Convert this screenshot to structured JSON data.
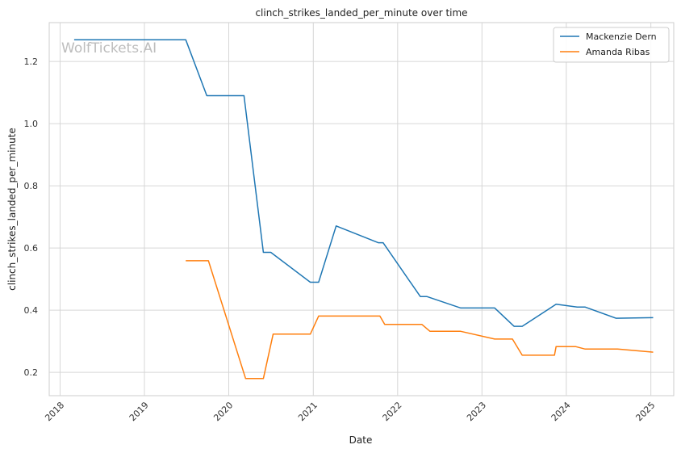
{
  "watermark": "WolfTickets.AI",
  "chart_data": {
    "type": "line",
    "title": "clinch_strikes_landed_per_minute over time",
    "xlabel": "Date",
    "ylabel": "clinch_strikes_landed_per_minute",
    "x_ticks": [
      "2018",
      "2019",
      "2020",
      "2021",
      "2022",
      "2023",
      "2024",
      "2025"
    ],
    "y_ticks": [
      "0.2",
      "0.4",
      "0.6",
      "0.8",
      "1.0",
      "1.2"
    ],
    "xlim": [
      "2017-11-15",
      "2025-04-10"
    ],
    "ylim": [
      0.125,
      1.325
    ],
    "grid": true,
    "legend_position": "top-right",
    "series": [
      {
        "name": "Mackenzie Dern",
        "color": "#1f77b4",
        "points": [
          {
            "x": "2018-03-03",
            "y": 1.27
          },
          {
            "x": "2019-06-29",
            "y": 1.27
          },
          {
            "x": "2019-09-28",
            "y": 1.09
          },
          {
            "x": "2020-03-07",
            "y": 1.09
          },
          {
            "x": "2020-05-30",
            "y": 0.586
          },
          {
            "x": "2020-07-01",
            "y": 0.586
          },
          {
            "x": "2020-12-19",
            "y": 0.49
          },
          {
            "x": "2021-01-24",
            "y": 0.49
          },
          {
            "x": "2021-04-10",
            "y": 0.671
          },
          {
            "x": "2021-10-09",
            "y": 0.617
          },
          {
            "x": "2021-10-30",
            "y": 0.617
          },
          {
            "x": "2022-04-09",
            "y": 0.444
          },
          {
            "x": "2022-05-07",
            "y": 0.444
          },
          {
            "x": "2022-10-01",
            "y": 0.407
          },
          {
            "x": "2023-02-25",
            "y": 0.407
          },
          {
            "x": "2023-05-20",
            "y": 0.348
          },
          {
            "x": "2023-06-24",
            "y": 0.348
          },
          {
            "x": "2023-11-18",
            "y": 0.419
          },
          {
            "x": "2024-02-17",
            "y": 0.41
          },
          {
            "x": "2024-03-23",
            "y": 0.41
          },
          {
            "x": "2024-08-03",
            "y": 0.374
          },
          {
            "x": "2025-01-11",
            "y": 0.376
          }
        ]
      },
      {
        "name": "Amanda Ribas",
        "color": "#ff7f0e",
        "points": [
          {
            "x": "2019-06-29",
            "y": 0.559
          },
          {
            "x": "2019-10-05",
            "y": 0.559
          },
          {
            "x": "2020-03-14",
            "y": 0.18
          },
          {
            "x": "2020-05-30",
            "y": 0.18
          },
          {
            "x": "2020-07-11",
            "y": 0.323
          },
          {
            "x": "2020-12-19",
            "y": 0.323
          },
          {
            "x": "2021-01-24",
            "y": 0.381
          },
          {
            "x": "2021-10-16",
            "y": 0.381
          },
          {
            "x": "2021-11-06",
            "y": 0.354
          },
          {
            "x": "2022-04-16",
            "y": 0.354
          },
          {
            "x": "2022-05-21",
            "y": 0.332
          },
          {
            "x": "2022-10-01",
            "y": 0.332
          },
          {
            "x": "2023-02-25",
            "y": 0.307
          },
          {
            "x": "2023-05-13",
            "y": 0.307
          },
          {
            "x": "2023-06-24",
            "y": 0.255
          },
          {
            "x": "2023-11-11",
            "y": 0.255
          },
          {
            "x": "2023-11-18",
            "y": 0.283
          },
          {
            "x": "2024-02-10",
            "y": 0.283
          },
          {
            "x": "2024-03-23",
            "y": 0.275
          },
          {
            "x": "2024-08-10",
            "y": 0.275
          },
          {
            "x": "2025-01-11",
            "y": 0.265
          }
        ]
      }
    ]
  }
}
